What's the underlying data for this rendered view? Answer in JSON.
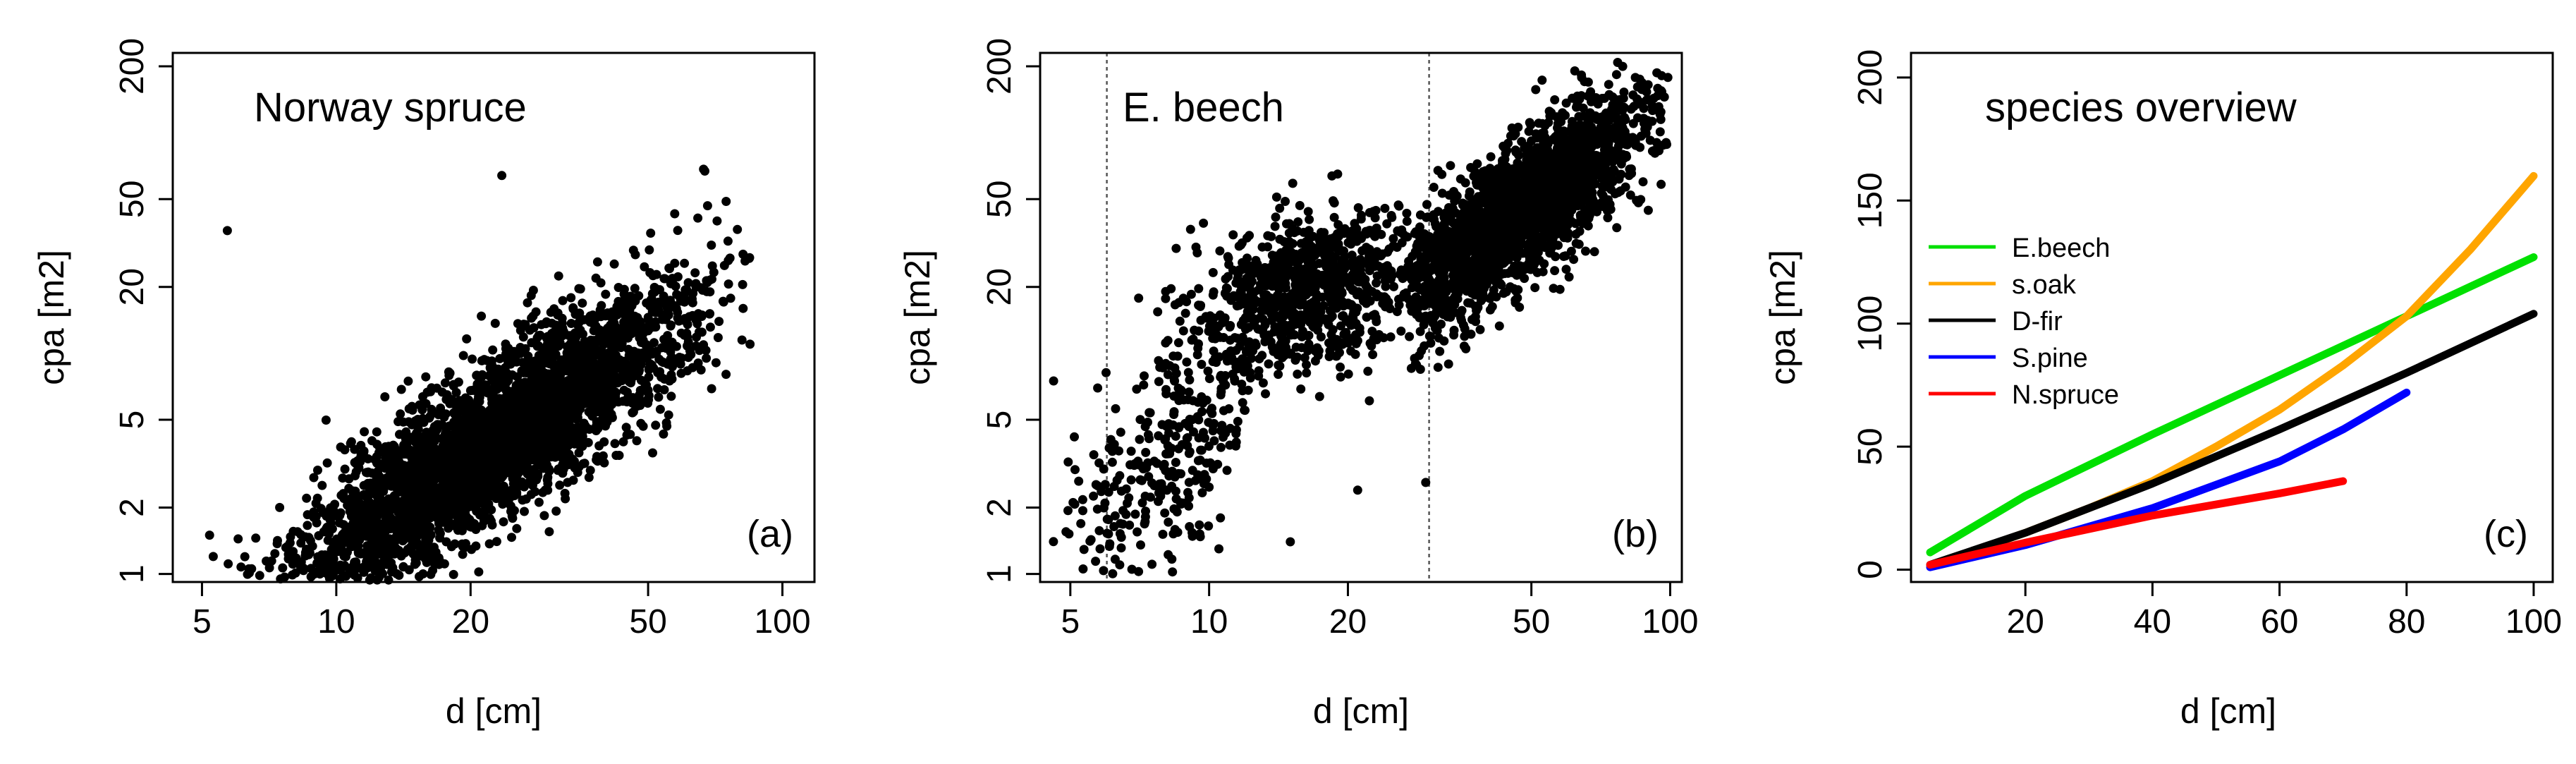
{
  "figure": {
    "background": "#ffffff",
    "point_color": "#000000"
  },
  "chart_data": [
    {
      "id": "a",
      "type": "scatter",
      "title": "Norway spruce",
      "panel_label": "(a)",
      "xlabel": "d [cm]",
      "ylabel": "cpa [m2]",
      "xscale": "log",
      "yscale": "log",
      "xlim": [
        4.3,
        118
      ],
      "ylim": [
        0.92,
        230
      ],
      "xticks": [
        5,
        10,
        20,
        50,
        100
      ],
      "yticks": [
        1,
        2,
        5,
        20,
        50,
        200
      ],
      "reference_lines_x": [],
      "cloud": {
        "n": 3500,
        "seed": 11,
        "x_logmean": 3.12,
        "x_logsd": 0.52,
        "x_range": [
          5.0,
          85
        ],
        "y_intercept": -2.6,
        "y_slope": 1.28,
        "y_logsd": 0.42,
        "y_range": [
          0.92,
          75
        ]
      },
      "outliers": [
        {
          "x": 5.7,
          "y": 36
        },
        {
          "x": 5.2,
          "y": 1.5
        },
        {
          "x": 5.3,
          "y": 1.2
        },
        {
          "x": 33,
          "y": 2.6
        },
        {
          "x": 7.5,
          "y": 0.95
        },
        {
          "x": 10.2,
          "y": 0.95
        },
        {
          "x": 23.5,
          "y": 64
        },
        {
          "x": 67,
          "y": 67
        }
      ]
    },
    {
      "id": "b",
      "type": "scatter",
      "title": "E. beech",
      "panel_label": "(b)",
      "xlabel": "d [cm]",
      "ylabel": "cpa [m2]",
      "xscale": "log",
      "yscale": "log",
      "xlim": [
        4.3,
        106
      ],
      "ylim": [
        0.92,
        230
      ],
      "xticks": [
        5,
        10,
        20,
        50,
        100
      ],
      "yticks": [
        1,
        2,
        5,
        20,
        50,
        200
      ],
      "reference_lines_x": [
        6.0,
        30.0
      ],
      "clusters": [
        {
          "n": 320,
          "seed": 21,
          "x_logmean": 2.1,
          "x_logsd": 0.3,
          "x_range": [
            4.5,
            12
          ],
          "y_intercept": -2.3,
          "y_slope": 1.65,
          "y_logsd": 0.55,
          "y_range": [
            1.0,
            25
          ]
        },
        {
          "n": 900,
          "seed": 22,
          "x_logmean": 2.8,
          "x_logsd": 0.3,
          "x_range": [
            7,
            32
          ],
          "y_intercept": 1.1,
          "y_slope": 0.65,
          "y_logsd": 0.42,
          "y_range": [
            2,
            65
          ]
        },
        {
          "n": 2300,
          "seed": 23,
          "x_logmean": 3.85,
          "x_logsd": 0.32,
          "x_range": [
            27,
            100
          ],
          "y_intercept": -2.1,
          "y_slope": 1.52,
          "y_logsd": 0.36,
          "y_range": [
            8,
            230
          ]
        }
      ],
      "outliers": [
        {
          "x": 10.5,
          "y": 1.3
        },
        {
          "x": 15,
          "y": 1.4
        },
        {
          "x": 29.5,
          "y": 2.6
        },
        {
          "x": 4.6,
          "y": 7.5
        },
        {
          "x": 6.4,
          "y": 1.1
        },
        {
          "x": 6.8,
          "y": 1.05
        },
        {
          "x": 5.8,
          "y": 1.3
        },
        {
          "x": 21,
          "y": 2.4
        },
        {
          "x": 19,
          "y": 65
        }
      ]
    },
    {
      "id": "c",
      "type": "line",
      "title": "species overview",
      "panel_label": "(c)",
      "xlabel": "d [cm]",
      "ylabel": "cpa [m2]",
      "xlim": [
        2,
        103
      ],
      "ylim": [
        -5,
        210
      ],
      "xticks": [
        20,
        40,
        60,
        80,
        100
      ],
      "yticks": [
        0,
        50,
        100,
        150,
        200
      ],
      "legend_position": "left",
      "series": [
        {
          "name": "E.beech",
          "color": "#00e000",
          "x": [
            5,
            20,
            40,
            60,
            80,
            100
          ],
          "y": [
            7,
            30,
            55,
            79,
            103,
            127
          ]
        },
        {
          "name": "s.oak",
          "color": "#ffa500",
          "x": [
            5,
            10,
            20,
            30,
            40,
            50,
            60,
            70,
            80,
            90,
            100
          ],
          "y": [
            2,
            6,
            15,
            25,
            36,
            50,
            65,
            83,
            103,
            130,
            160
          ]
        },
        {
          "name": "D-fir",
          "color": "#000000",
          "x": [
            5,
            20,
            40,
            60,
            80,
            100
          ],
          "y": [
            2,
            15,
            35,
            57,
            80,
            104
          ]
        },
        {
          "name": "S.pine",
          "color": "#0000ff",
          "x": [
            5,
            20,
            40,
            60,
            70,
            80
          ],
          "y": [
            1,
            10,
            25,
            44,
            57,
            72
          ]
        },
        {
          "name": "N.spruce",
          "color": "#ff0000",
          "x": [
            5,
            20,
            40,
            60,
            70
          ],
          "y": [
            2,
            11,
            22,
            31,
            36
          ]
        }
      ]
    }
  ]
}
